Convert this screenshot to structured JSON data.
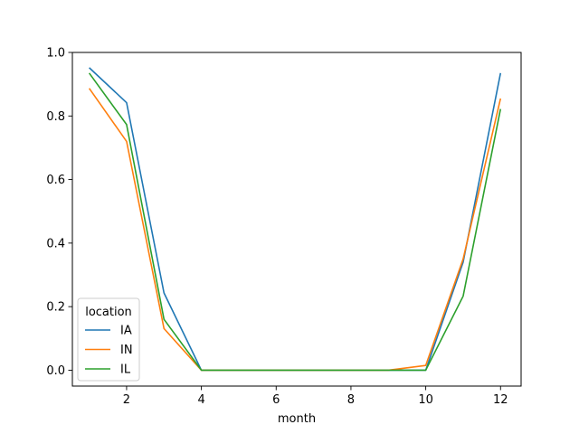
{
  "chart_data": {
    "type": "line",
    "title": "",
    "xlabel": "month",
    "ylabel": "",
    "xlim": [
      0.55,
      12.55
    ],
    "ylim": [
      -0.05,
      1.0
    ],
    "x_ticks": [
      2,
      4,
      6,
      8,
      10,
      12
    ],
    "x_tick_labels": [
      "2",
      "4",
      "6",
      "8",
      "10",
      "12"
    ],
    "y_ticks": [
      0.0,
      0.2,
      0.4,
      0.6,
      0.8,
      1.0
    ],
    "y_tick_labels": [
      "0.0",
      "0.2",
      "0.4",
      "0.6",
      "0.8",
      "1.0"
    ],
    "grid": false,
    "legend": {
      "title": "location",
      "placement": "lower-left"
    },
    "x": [
      1,
      2,
      3,
      4,
      5,
      6,
      7,
      8,
      9,
      10,
      11,
      12
    ],
    "series": [
      {
        "name": "IA",
        "color": "#1f77b4",
        "values": [
          0.952,
          0.842,
          0.243,
          0.0,
          0.0,
          0.0,
          0.0,
          0.0,
          0.0,
          0.0,
          0.34,
          0.935
        ]
      },
      {
        "name": "IN",
        "color": "#ff7f0e",
        "values": [
          0.887,
          0.72,
          0.131,
          0.0,
          0.0,
          0.0,
          0.0,
          0.0,
          0.0,
          0.015,
          0.35,
          0.855
        ]
      },
      {
        "name": "IL",
        "color": "#2ca02c",
        "values": [
          0.935,
          0.773,
          0.16,
          0.0,
          0.0,
          0.0,
          0.0,
          0.0,
          0.0,
          0.0,
          0.233,
          0.822
        ]
      }
    ]
  }
}
